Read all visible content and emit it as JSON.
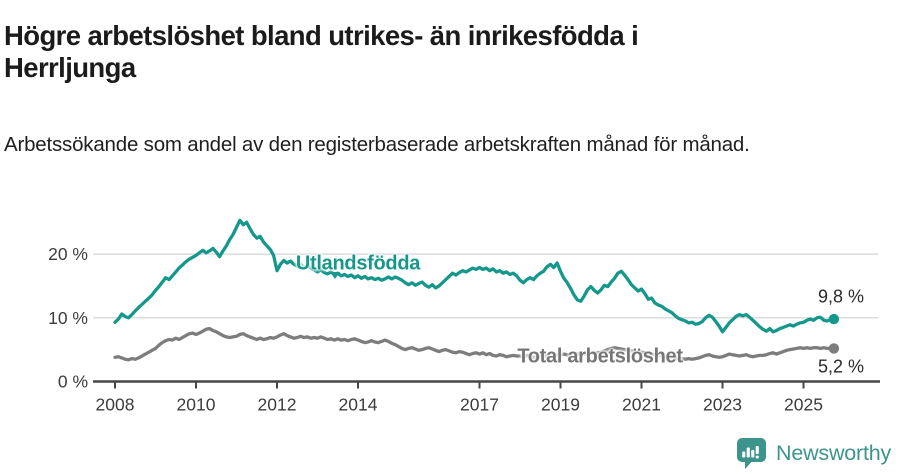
{
  "header": {
    "title": "Högre arbetslöshet bland utrikes- än inrikesfödda i Herrljunga",
    "subtitle": "Arbetssökande som andel av den registerbaserade arbetskraften månad för månad."
  },
  "chart_data": {
    "type": "line",
    "title": "Högre arbetslöshet bland utrikes- än inrikesfödda i Herrljunga",
    "subtitle": "Arbetssökande som andel av den registerbaserade arbetskraften månad för månad.",
    "grid": "horizontal",
    "legend": "inline-labels",
    "unit": "%",
    "start_year": 2008,
    "points_per_year": 12,
    "x_axis": {
      "tick_years": [
        2008,
        2010,
        2012,
        2014,
        2017,
        2019,
        2021,
        2023,
        2025
      ],
      "tick_labels": [
        "2008",
        "2010",
        "2012",
        "2014",
        "2017",
        "2019",
        "2021",
        "2023",
        "2025"
      ],
      "range": [
        2007.45,
        2025.95
      ]
    },
    "y_axis": {
      "ticks": [
        {
          "value": 0,
          "label": "0 %"
        },
        {
          "value": 10,
          "label": "10 %"
        },
        {
          "value": 20,
          "label": "20 %"
        }
      ],
      "range": [
        0,
        26
      ]
    },
    "series": [
      {
        "id": "utlandsfodda",
        "name": "Utlandsfödda",
        "color": "#15988b",
        "latest_label": "9,8 %",
        "latest_value": 9.8,
        "values": [
          9.3,
          9.8,
          10.6,
          10.2,
          10.0,
          10.5,
          11.1,
          11.6,
          12.1,
          12.6,
          13.1,
          13.6,
          14.3,
          14.9,
          15.6,
          16.3,
          16.0,
          16.6,
          17.2,
          17.8,
          18.3,
          18.8,
          19.2,
          19.5,
          19.8,
          20.2,
          20.6,
          20.2,
          20.5,
          20.9,
          20.3,
          19.6,
          20.5,
          21.3,
          22.3,
          23.1,
          24.2,
          25.3,
          24.6,
          25.0,
          24.0,
          23.1,
          22.5,
          22.8,
          21.9,
          21.3,
          20.7,
          19.8,
          17.4,
          18.4,
          19.0,
          18.6,
          18.9,
          18.4,
          18.1,
          18.4,
          17.9,
          18.2,
          17.8,
          17.5,
          17.2,
          17.5,
          17.1,
          16.9,
          17.2,
          16.8,
          17.0,
          16.6,
          16.8,
          16.5,
          16.7,
          16.3,
          16.6,
          16.2,
          16.5,
          16.1,
          16.3,
          16.0,
          16.2,
          15.9,
          16.1,
          16.4,
          16.1,
          16.4,
          16.2,
          15.9,
          15.5,
          15.2,
          15.5,
          15.1,
          15.4,
          15.6,
          15.1,
          14.8,
          15.2,
          14.7,
          15.0,
          15.5,
          16.0,
          16.5,
          17.0,
          16.7,
          17.1,
          17.4,
          17.2,
          17.5,
          17.8,
          17.6,
          17.9,
          17.6,
          17.8,
          17.4,
          17.7,
          17.2,
          17.4,
          17.0,
          17.2,
          16.8,
          17.0,
          16.6,
          15.9,
          15.5,
          16.0,
          16.3,
          16.0,
          16.6,
          17.0,
          17.3,
          18.0,
          18.4,
          17.9,
          18.6,
          17.3,
          16.2,
          15.5,
          14.6,
          13.6,
          12.8,
          12.6,
          13.4,
          14.4,
          14.9,
          14.3,
          13.9,
          14.4,
          15.1,
          14.9,
          15.6,
          16.2,
          17.0,
          17.3,
          16.7,
          16.0,
          15.2,
          14.7,
          14.2,
          14.5,
          13.8,
          12.9,
          13.1,
          12.3,
          12.0,
          11.8,
          11.4,
          11.1,
          10.8,
          10.3,
          9.9,
          9.7,
          9.5,
          9.2,
          9.3,
          9.0,
          9.1,
          9.4,
          10.0,
          10.4,
          10.1,
          9.4,
          8.7,
          7.8,
          8.5,
          9.2,
          9.7,
          10.2,
          10.5,
          10.3,
          10.5,
          10.1,
          9.6,
          9.1,
          8.6,
          8.2,
          7.9,
          8.3,
          7.8,
          8.0,
          8.3,
          8.5,
          8.7,
          8.9,
          8.7,
          9.0,
          9.2,
          9.3,
          9.6,
          9.8,
          9.6,
          10.0,
          10.1,
          9.6,
          9.5,
          9.7,
          9.8
        ]
      },
      {
        "id": "total",
        "name": "Total arbetslöshet",
        "color": "#7d7d7d",
        "latest_label": "5,2 %",
        "latest_value": 5.2,
        "values": [
          3.8,
          3.9,
          3.7,
          3.5,
          3.4,
          3.6,
          3.5,
          3.7,
          4.0,
          4.3,
          4.6,
          4.9,
          5.2,
          5.7,
          6.1,
          6.4,
          6.6,
          6.5,
          6.8,
          6.6,
          6.9,
          7.2,
          7.5,
          7.6,
          7.4,
          7.6,
          7.9,
          8.2,
          8.3,
          8.0,
          7.8,
          7.5,
          7.2,
          7.0,
          6.9,
          7.0,
          7.1,
          7.4,
          7.5,
          7.2,
          7.0,
          6.8,
          6.6,
          6.8,
          6.6,
          6.7,
          6.9,
          6.8,
          7.0,
          7.3,
          7.5,
          7.2,
          7.0,
          6.8,
          6.9,
          7.1,
          6.9,
          7.0,
          6.8,
          6.9,
          6.8,
          7.0,
          6.8,
          6.6,
          6.7,
          6.5,
          6.7,
          6.5,
          6.6,
          6.4,
          6.6,
          6.7,
          6.5,
          6.3,
          6.1,
          6.2,
          6.4,
          6.2,
          6.1,
          6.3,
          6.5,
          6.3,
          6.0,
          5.8,
          5.5,
          5.2,
          5.0,
          5.2,
          5.3,
          5.1,
          4.9,
          5.0,
          5.2,
          5.3,
          5.1,
          4.9,
          4.7,
          4.9,
          5.0,
          4.8,
          4.6,
          4.5,
          4.7,
          4.6,
          4.4,
          4.2,
          4.4,
          4.5,
          4.3,
          4.5,
          4.2,
          4.4,
          4.1,
          4.0,
          4.2,
          4.1,
          3.9,
          4.0,
          4.1,
          4.0,
          4.0,
          3.9,
          4.1,
          4.0,
          3.8,
          3.9,
          4.0,
          4.1,
          4.0,
          4.2,
          4.1,
          4.2,
          4.2,
          4.3,
          4.2,
          4.1,
          4.2,
          4.3,
          4.4,
          4.3,
          4.4,
          4.5,
          4.4,
          4.5,
          4.6,
          4.8,
          5.0,
          5.2,
          5.3,
          5.2,
          5.1,
          5.0,
          4.9,
          4.8,
          4.7,
          4.6,
          4.6,
          4.5,
          4.4,
          4.3,
          4.2,
          4.1,
          4.0,
          3.9,
          3.8,
          3.8,
          3.7,
          3.6,
          3.6,
          3.5,
          3.6,
          3.5,
          3.6,
          3.7,
          3.9,
          4.1,
          4.2,
          4.0,
          3.9,
          3.8,
          3.9,
          4.1,
          4.3,
          4.2,
          4.1,
          4.0,
          4.1,
          4.2,
          4.0,
          3.9,
          4.0,
          4.1,
          4.1,
          4.2,
          4.4,
          4.5,
          4.3,
          4.5,
          4.7,
          4.9,
          5.0,
          5.1,
          5.2,
          5.3,
          5.2,
          5.3,
          5.2,
          5.3,
          5.3,
          5.2,
          5.3,
          5.2,
          5.2,
          5.2
        ]
      }
    ],
    "annotations": {
      "utlandsfodda": {
        "text": "Utlandsfödda"
      },
      "total": {
        "text": "Total arbetslöshet"
      },
      "latest_utlandsfodda": {
        "text": "9,8 %"
      },
      "latest_total": {
        "text": "5,2 %"
      }
    },
    "colors": {
      "utlandsfodda": "#15988b",
      "total": "#7d7d7d",
      "grid": "#dcdcdc",
      "axis": "#474747"
    }
  },
  "footer": {
    "brand": "Newsworthy",
    "brand_color": "#3d948d"
  }
}
